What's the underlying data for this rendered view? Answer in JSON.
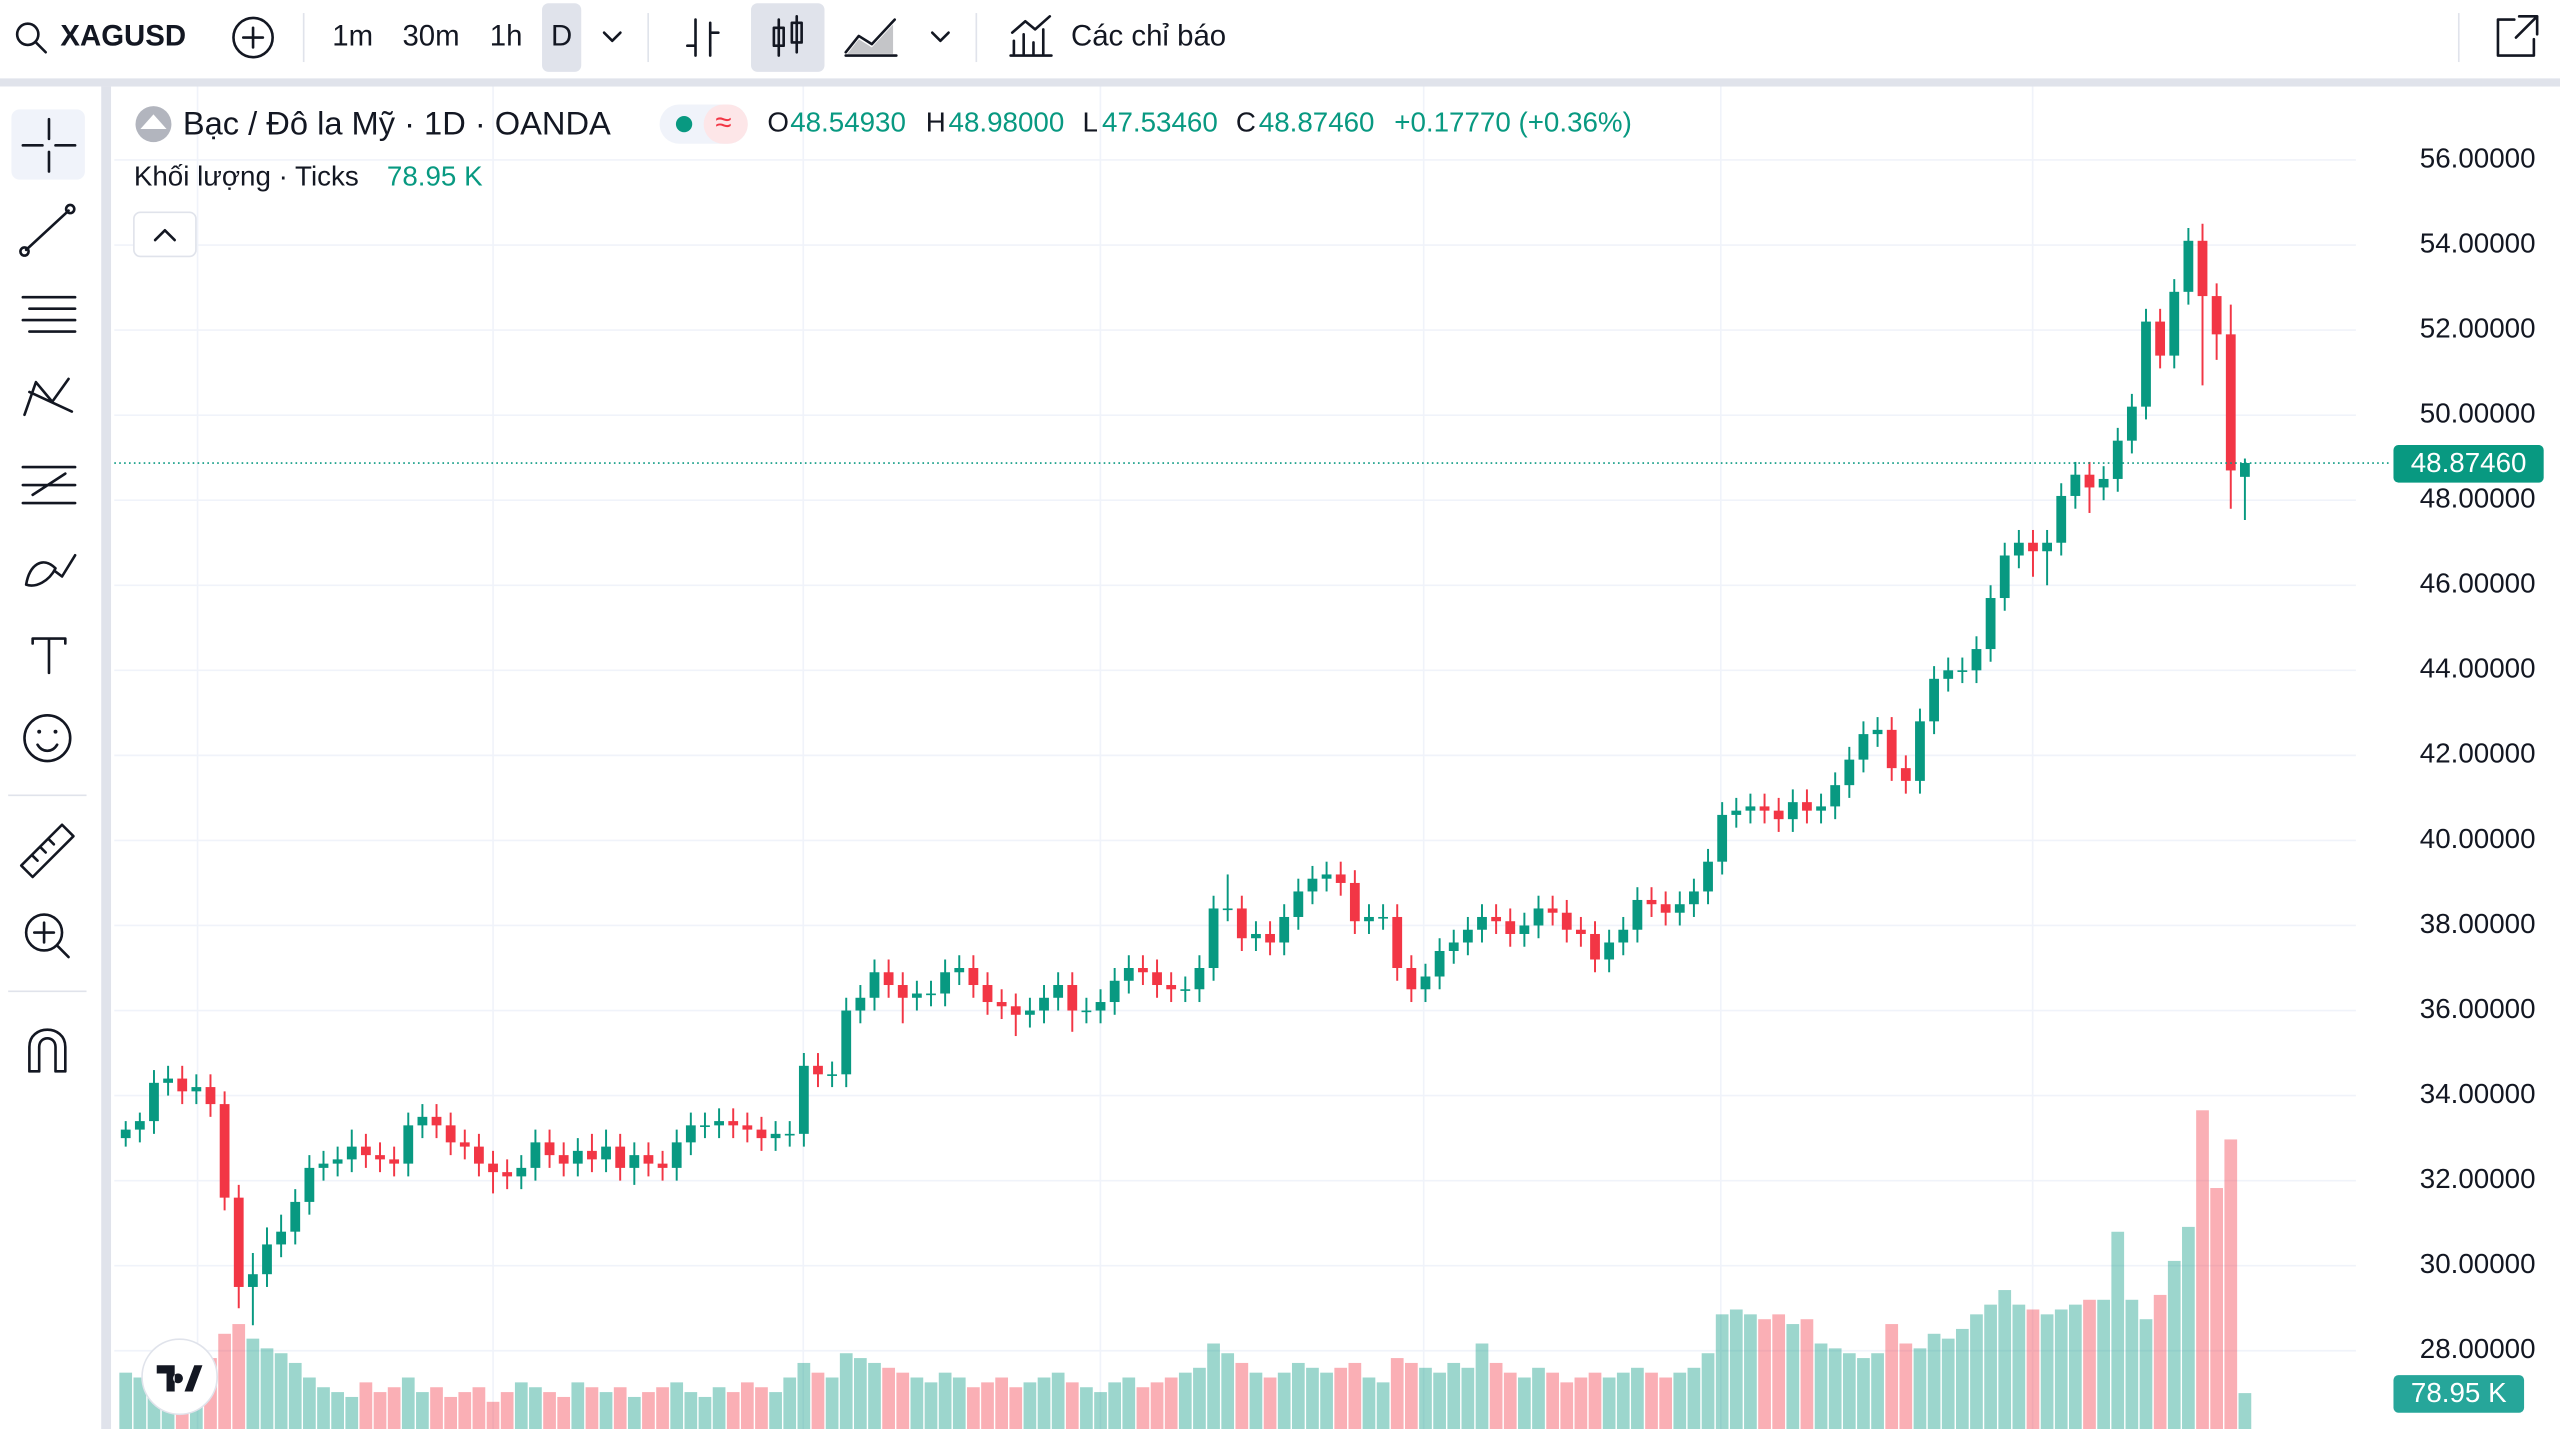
{
  "toolbar": {
    "symbol": "XAGUSD",
    "intervals": [
      "1m",
      "30m",
      "1h",
      "D"
    ],
    "indicators": "Các chỉ báo"
  },
  "legend": {
    "title": "Bạc / Đô la Mỹ · 1D · OANDA",
    "status_symbol": "≈",
    "items": [
      {
        "key": "O",
        "value": "48.54930"
      },
      {
        "key": "H",
        "value": "48.98000"
      },
      {
        "key": "L",
        "value": "47.53460"
      },
      {
        "key": "C",
        "value": "48.87460"
      }
    ],
    "change": "+0.17770 (+0.36%)"
  },
  "chart_data": {
    "type": "candlestick",
    "up_color": "#089981",
    "down_color": "#f23645",
    "grid": true,
    "ylim": [
      26.16,
      57.65
    ],
    "yticks": [
      {
        "value": 28,
        "label": "28.00000"
      },
      {
        "value": 30,
        "label": "30.00000"
      },
      {
        "value": 32,
        "label": "32.00000"
      },
      {
        "value": 34,
        "label": "34.00000"
      },
      {
        "value": 36,
        "label": "36.00000"
      },
      {
        "value": 38,
        "label": "38.00000"
      },
      {
        "value": 40,
        "label": "40.00000"
      },
      {
        "value": 42,
        "label": "42.00000"
      },
      {
        "value": 44,
        "label": "44.00000"
      },
      {
        "value": 46,
        "label": "46.00000"
      },
      {
        "value": 48,
        "label": "48.00000"
      },
      {
        "value": 50,
        "label": "50.00000"
      },
      {
        "value": 52,
        "label": "52.00000"
      },
      {
        "value": 54,
        "label": "54.00000"
      },
      {
        "value": 56,
        "label": "56.00000"
      }
    ],
    "last_label": "48.87460",
    "ohlc": [
      [
        33.0,
        33.4,
        32.8,
        33.2
      ],
      [
        33.2,
        33.6,
        32.9,
        33.4
      ],
      [
        33.4,
        34.6,
        33.1,
        34.3
      ],
      [
        34.3,
        34.7,
        34.0,
        34.4
      ],
      [
        34.4,
        34.7,
        33.8,
        34.1
      ],
      [
        34.1,
        34.5,
        33.8,
        34.2
      ],
      [
        34.2,
        34.5,
        33.5,
        33.8
      ],
      [
        33.8,
        34.1,
        31.3,
        31.6
      ],
      [
        31.6,
        31.9,
        29.0,
        29.5
      ],
      [
        29.5,
        30.3,
        28.6,
        29.8
      ],
      [
        29.8,
        30.9,
        29.5,
        30.5
      ],
      [
        30.5,
        31.2,
        30.2,
        30.8
      ],
      [
        30.8,
        31.8,
        30.5,
        31.5
      ],
      [
        31.5,
        32.6,
        31.2,
        32.3
      ],
      [
        32.3,
        32.7,
        32.0,
        32.4
      ],
      [
        32.4,
        32.8,
        32.1,
        32.5
      ],
      [
        32.5,
        33.2,
        32.2,
        32.8
      ],
      [
        32.8,
        33.1,
        32.3,
        32.6
      ],
      [
        32.6,
        32.9,
        32.2,
        32.5
      ],
      [
        32.5,
        32.8,
        32.1,
        32.4
      ],
      [
        32.4,
        33.6,
        32.1,
        33.3
      ],
      [
        33.3,
        33.8,
        33.0,
        33.5
      ],
      [
        33.5,
        33.8,
        33.0,
        33.3
      ],
      [
        33.3,
        33.6,
        32.6,
        32.9
      ],
      [
        32.9,
        33.2,
        32.5,
        32.8
      ],
      [
        32.8,
        33.1,
        32.1,
        32.4
      ],
      [
        32.4,
        32.7,
        31.7,
        32.2
      ],
      [
        32.2,
        32.5,
        31.8,
        32.1
      ],
      [
        32.1,
        32.6,
        31.8,
        32.3
      ],
      [
        32.3,
        33.2,
        32.0,
        32.9
      ],
      [
        32.9,
        33.2,
        32.3,
        32.6
      ],
      [
        32.6,
        32.9,
        32.1,
        32.4
      ],
      [
        32.4,
        33.0,
        32.1,
        32.7
      ],
      [
        32.7,
        33.1,
        32.2,
        32.5
      ],
      [
        32.5,
        33.2,
        32.2,
        32.8
      ],
      [
        32.8,
        33.1,
        32.0,
        32.3
      ],
      [
        32.3,
        32.9,
        31.9,
        32.6
      ],
      [
        32.6,
        32.9,
        32.1,
        32.4
      ],
      [
        32.4,
        32.7,
        32.0,
        32.3
      ],
      [
        32.3,
        33.2,
        32.0,
        32.9
      ],
      [
        32.9,
        33.6,
        32.6,
        33.3
      ],
      [
        33.3,
        33.6,
        33.0,
        33.3
      ],
      [
        33.3,
        33.7,
        33.0,
        33.4
      ],
      [
        33.4,
        33.7,
        33.0,
        33.3
      ],
      [
        33.3,
        33.6,
        32.9,
        33.2
      ],
      [
        33.2,
        33.5,
        32.7,
        33.0
      ],
      [
        33.0,
        33.4,
        32.7,
        33.1
      ],
      [
        33.1,
        33.4,
        32.8,
        33.1
      ],
      [
        33.1,
        35.0,
        32.8,
        34.7
      ],
      [
        34.7,
        35.0,
        34.2,
        34.5
      ],
      [
        34.5,
        34.8,
        34.2,
        34.5
      ],
      [
        34.5,
        36.3,
        34.2,
        36.0
      ],
      [
        36.0,
        36.6,
        35.7,
        36.3
      ],
      [
        36.3,
        37.2,
        36.0,
        36.9
      ],
      [
        36.9,
        37.2,
        36.3,
        36.6
      ],
      [
        36.6,
        36.9,
        35.7,
        36.3
      ],
      [
        36.3,
        36.7,
        36.0,
        36.4
      ],
      [
        36.4,
        36.7,
        36.1,
        36.4
      ],
      [
        36.4,
        37.2,
        36.1,
        36.9
      ],
      [
        36.9,
        37.3,
        36.6,
        37.0
      ],
      [
        37.0,
        37.3,
        36.3,
        36.6
      ],
      [
        36.6,
        36.9,
        35.9,
        36.2
      ],
      [
        36.2,
        36.5,
        35.8,
        36.1
      ],
      [
        36.1,
        36.4,
        35.4,
        35.9
      ],
      [
        35.9,
        36.3,
        35.6,
        36.0
      ],
      [
        36.0,
        36.6,
        35.7,
        36.3
      ],
      [
        36.3,
        36.9,
        36.0,
        36.6
      ],
      [
        36.6,
        36.9,
        35.5,
        36.0
      ],
      [
        36.0,
        36.3,
        35.7,
        36.0
      ],
      [
        36.0,
        36.5,
        35.7,
        36.2
      ],
      [
        36.2,
        37.0,
        35.9,
        36.7
      ],
      [
        36.7,
        37.3,
        36.4,
        37.0
      ],
      [
        37.0,
        37.3,
        36.6,
        36.9
      ],
      [
        36.9,
        37.2,
        36.3,
        36.6
      ],
      [
        36.6,
        36.9,
        36.2,
        36.5
      ],
      [
        36.5,
        36.8,
        36.2,
        36.5
      ],
      [
        36.5,
        37.3,
        36.2,
        37.0
      ],
      [
        37.0,
        38.7,
        36.7,
        38.4
      ],
      [
        38.4,
        39.2,
        38.1,
        38.4
      ],
      [
        38.4,
        38.7,
        37.4,
        37.7
      ],
      [
        37.7,
        38.1,
        37.4,
        37.8
      ],
      [
        37.8,
        38.1,
        37.3,
        37.6
      ],
      [
        37.6,
        38.5,
        37.3,
        38.2
      ],
      [
        38.2,
        39.1,
        37.9,
        38.8
      ],
      [
        38.8,
        39.4,
        38.5,
        39.1
      ],
      [
        39.1,
        39.5,
        38.8,
        39.2
      ],
      [
        39.2,
        39.5,
        38.7,
        39.0
      ],
      [
        39.0,
        39.3,
        37.8,
        38.1
      ],
      [
        38.1,
        38.5,
        37.8,
        38.2
      ],
      [
        38.2,
        38.5,
        37.9,
        38.2
      ],
      [
        38.2,
        38.5,
        36.7,
        37.0
      ],
      [
        37.0,
        37.3,
        36.2,
        36.5
      ],
      [
        36.5,
        37.1,
        36.2,
        36.8
      ],
      [
        36.8,
        37.7,
        36.5,
        37.4
      ],
      [
        37.4,
        37.9,
        37.1,
        37.6
      ],
      [
        37.6,
        38.2,
        37.3,
        37.9
      ],
      [
        37.9,
        38.5,
        37.6,
        38.2
      ],
      [
        38.2,
        38.5,
        37.8,
        38.1
      ],
      [
        38.1,
        38.4,
        37.5,
        37.8
      ],
      [
        37.8,
        38.3,
        37.5,
        38.0
      ],
      [
        38.0,
        38.7,
        37.7,
        38.4
      ],
      [
        38.4,
        38.7,
        38.0,
        38.3
      ],
      [
        38.3,
        38.6,
        37.6,
        37.9
      ],
      [
        37.9,
        38.2,
        37.5,
        37.8
      ],
      [
        37.8,
        38.1,
        36.9,
        37.2
      ],
      [
        37.2,
        37.9,
        36.9,
        37.6
      ],
      [
        37.6,
        38.2,
        37.3,
        37.9
      ],
      [
        37.9,
        38.9,
        37.6,
        38.6
      ],
      [
        38.6,
        38.9,
        38.2,
        38.5
      ],
      [
        38.5,
        38.8,
        38.0,
        38.3
      ],
      [
        38.3,
        38.8,
        38.0,
        38.5
      ],
      [
        38.5,
        39.1,
        38.2,
        38.8
      ],
      [
        38.8,
        39.8,
        38.5,
        39.5
      ],
      [
        39.5,
        40.9,
        39.2,
        40.6
      ],
      [
        40.6,
        41.0,
        40.3,
        40.7
      ],
      [
        40.7,
        41.1,
        40.4,
        40.8
      ],
      [
        40.8,
        41.1,
        40.4,
        40.7
      ],
      [
        40.7,
        41.0,
        40.2,
        40.5
      ],
      [
        40.5,
        41.2,
        40.2,
        40.9
      ],
      [
        40.9,
        41.2,
        40.4,
        40.7
      ],
      [
        40.7,
        41.1,
        40.4,
        40.8
      ],
      [
        40.8,
        41.6,
        40.5,
        41.3
      ],
      [
        41.3,
        42.2,
        41.0,
        41.9
      ],
      [
        41.9,
        42.8,
        41.6,
        42.5
      ],
      [
        42.5,
        42.9,
        42.2,
        42.6
      ],
      [
        42.6,
        42.9,
        41.4,
        41.7
      ],
      [
        41.7,
        42.0,
        41.1,
        41.4
      ],
      [
        41.4,
        43.1,
        41.1,
        42.8
      ],
      [
        42.8,
        44.1,
        42.5,
        43.8
      ],
      [
        43.8,
        44.3,
        43.5,
        44.0
      ],
      [
        44.0,
        44.3,
        43.7,
        44.0
      ],
      [
        44.0,
        44.8,
        43.7,
        44.5
      ],
      [
        44.5,
        46.0,
        44.2,
        45.7
      ],
      [
        45.7,
        47.0,
        45.4,
        46.7
      ],
      [
        46.7,
        47.3,
        46.4,
        47.0
      ],
      [
        47.0,
        47.3,
        46.2,
        46.8
      ],
      [
        46.8,
        47.3,
        46.0,
        47.0
      ],
      [
        47.0,
        48.4,
        46.7,
        48.1
      ],
      [
        48.1,
        48.9,
        47.8,
        48.6
      ],
      [
        48.6,
        48.9,
        47.7,
        48.3
      ],
      [
        48.3,
        48.8,
        48.0,
        48.5
      ],
      [
        48.5,
        49.7,
        48.2,
        49.4
      ],
      [
        49.4,
        50.5,
        49.1,
        50.2
      ],
      [
        50.2,
        52.5,
        49.9,
        52.2
      ],
      [
        52.2,
        52.5,
        51.1,
        51.4
      ],
      [
        51.4,
        53.2,
        51.1,
        52.9
      ],
      [
        52.9,
        54.4,
        52.6,
        54.1
      ],
      [
        54.1,
        54.5,
        50.7,
        52.8
      ],
      [
        52.8,
        53.1,
        51.3,
        51.9
      ],
      [
        51.9,
        52.6,
        47.8,
        48.7
      ],
      [
        48.5493,
        48.98,
        47.5346,
        48.8746
      ]
    ],
    "volume": {
      "title": "Khối lượng · Ticks",
      "last_label": "78.95 K",
      "values": [
        100,
        95,
        110,
        105,
        100,
        110,
        115,
        140,
        150,
        135,
        125,
        120,
        110,
        95,
        85,
        80,
        75,
        90,
        80,
        85,
        95,
        80,
        85,
        75,
        80,
        85,
        70,
        80,
        90,
        85,
        80,
        75,
        90,
        85,
        80,
        85,
        75,
        80,
        85,
        90,
        80,
        75,
        85,
        80,
        90,
        85,
        80,
        95,
        110,
        100,
        95,
        120,
        115,
        110,
        105,
        100,
        95,
        90,
        100,
        95,
        85,
        90,
        95,
        85,
        90,
        95,
        100,
        90,
        85,
        80,
        90,
        95,
        85,
        90,
        95,
        100,
        105,
        130,
        120,
        110,
        100,
        95,
        100,
        110,
        105,
        100,
        105,
        110,
        95,
        90,
        115,
        110,
        105,
        100,
        110,
        105,
        130,
        110,
        100,
        95,
        105,
        100,
        90,
        95,
        100,
        95,
        100,
        105,
        100,
        95,
        100,
        105,
        120,
        160,
        165,
        160,
        155,
        160,
        150,
        155,
        130,
        125,
        120,
        115,
        120,
        150,
        130,
        125,
        140,
        135,
        145,
        160,
        170,
        185,
        170,
        165,
        160,
        165,
        170,
        175,
        175,
        245,
        175,
        155,
        180,
        215,
        250,
        370,
        290,
        340,
        78.95
      ]
    }
  }
}
